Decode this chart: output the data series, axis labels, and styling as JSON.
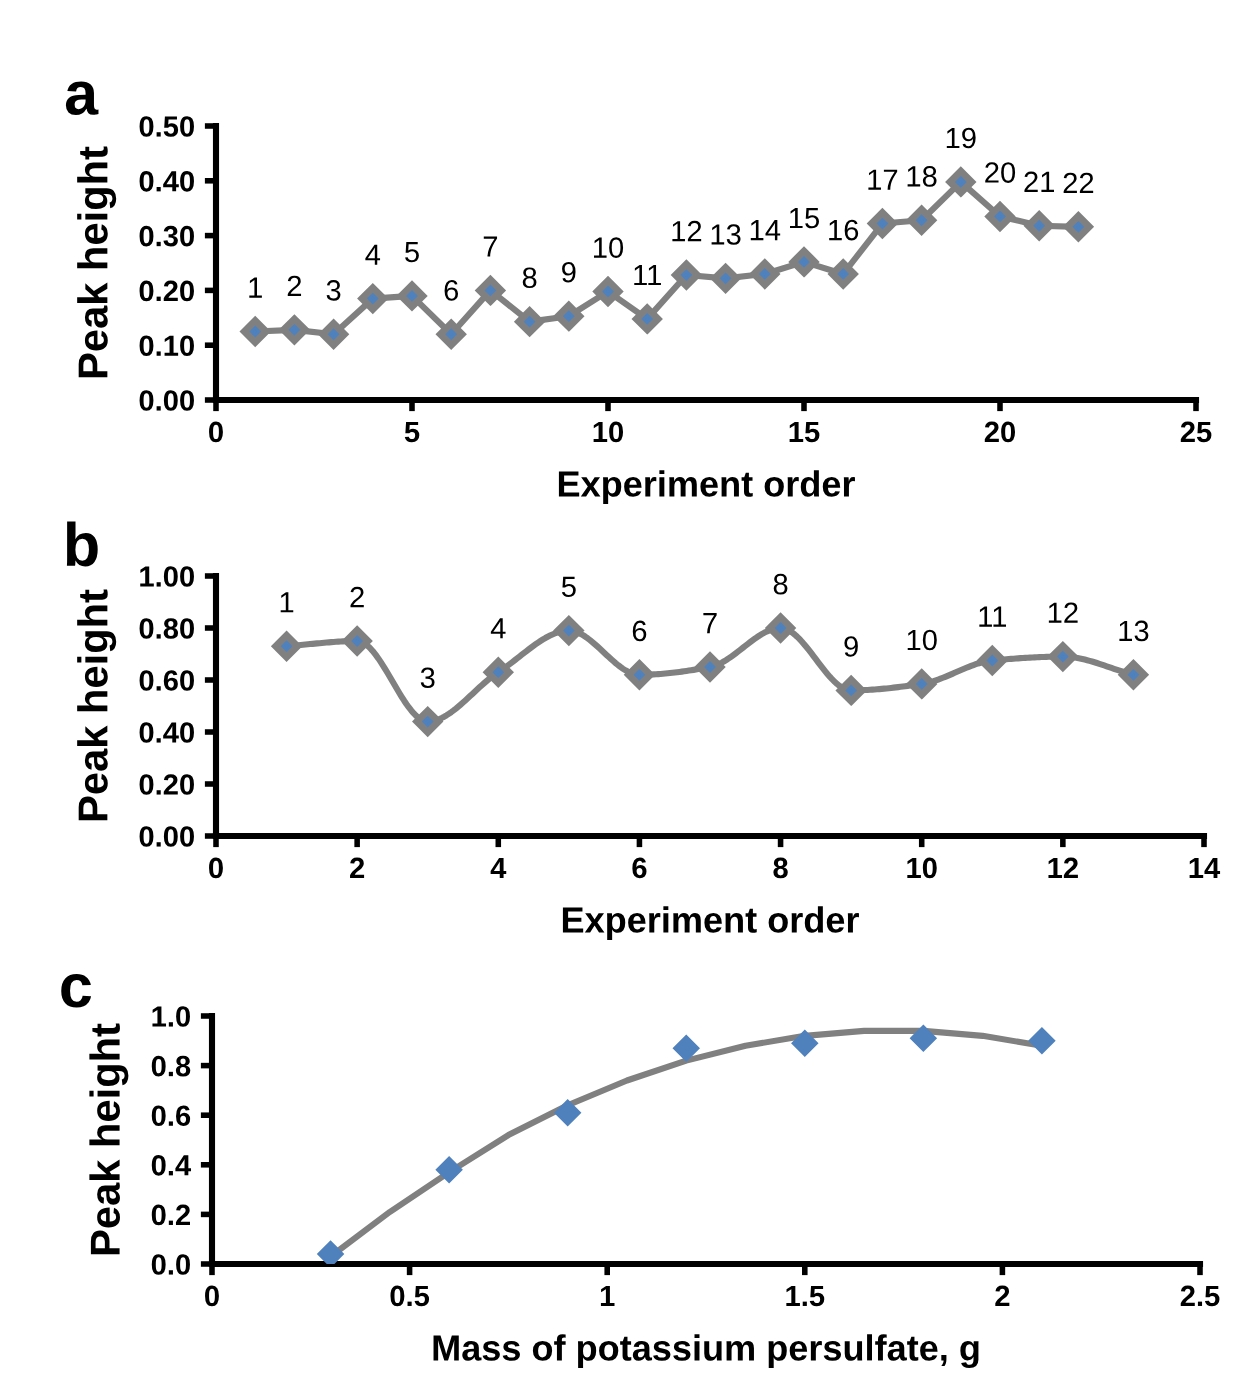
{
  "chart_data": [
    {
      "type": "line",
      "title": "a",
      "xlabel": "Experiment order",
      "ylabel": "Peak height",
      "marker": "diamond",
      "line_style": "solid",
      "grid": false,
      "legend": false,
      "x": [
        1,
        2,
        3,
        4,
        5,
        6,
        7,
        8,
        9,
        10,
        11,
        12,
        13,
        14,
        15,
        16,
        17,
        18,
        19,
        20,
        21,
        22
      ],
      "series": [
        {
          "color": "#808080",
          "values": [
            0.125,
            0.128,
            0.12,
            0.185,
            0.19,
            0.12,
            0.2,
            0.143,
            0.153,
            0.198,
            0.148,
            0.228,
            0.222,
            0.23,
            0.252,
            0.23,
            0.322,
            0.328,
            0.398,
            0.335,
            0.318,
            0.316
          ]
        }
      ],
      "annotations": [
        {
          "text": "1",
          "x": 1,
          "y": 0.125
        },
        {
          "text": "2",
          "x": 2,
          "y": 0.128
        },
        {
          "text": "3",
          "x": 3,
          "y": 0.12
        },
        {
          "text": "4",
          "x": 4,
          "y": 0.185
        },
        {
          "text": "5",
          "x": 5,
          "y": 0.19
        },
        {
          "text": "6",
          "x": 6,
          "y": 0.12
        },
        {
          "text": "7",
          "x": 7,
          "y": 0.2
        },
        {
          "text": "8",
          "x": 8,
          "y": 0.143
        },
        {
          "text": "9",
          "x": 9,
          "y": 0.153
        },
        {
          "text": "10",
          "x": 10,
          "y": 0.198
        },
        {
          "text": "11",
          "x": 11,
          "y": 0.148
        },
        {
          "text": "12",
          "x": 12,
          "y": 0.228
        },
        {
          "text": "13",
          "x": 13,
          "y": 0.222
        },
        {
          "text": "14",
          "x": 14,
          "y": 0.23
        },
        {
          "text": "15",
          "x": 15,
          "y": 0.252
        },
        {
          "text": "16",
          "x": 16,
          "y": 0.23
        },
        {
          "text": "17",
          "x": 17,
          "y": 0.322
        },
        {
          "text": "18",
          "x": 18,
          "y": 0.328
        },
        {
          "text": "19",
          "x": 19,
          "y": 0.398
        },
        {
          "text": "20",
          "x": 20,
          "y": 0.335
        },
        {
          "text": "21",
          "x": 21,
          "y": 0.318
        },
        {
          "text": "22",
          "x": 22,
          "y": 0.316
        }
      ],
      "xlim": [
        0,
        25
      ],
      "xticks": [
        0,
        5,
        10,
        15,
        20,
        25
      ],
      "ylim": [
        0,
        0.5
      ],
      "yticks": [
        {
          "value": 0,
          "label": "0.00"
        },
        {
          "value": 0.1,
          "label": "0.10"
        },
        {
          "value": 0.2,
          "label": "0.20"
        },
        {
          "value": 0.3,
          "label": "0.30"
        },
        {
          "value": 0.4,
          "label": "0.40"
        },
        {
          "value": 0.5,
          "label": "0.50"
        }
      ]
    },
    {
      "type": "line",
      "title": "b",
      "xlabel": "Experiment order",
      "ylabel": "Peak height",
      "marker": "diamond",
      "line_style": "solid",
      "grid": false,
      "legend": false,
      "x": [
        1,
        2,
        3,
        4,
        5,
        6,
        7,
        8,
        9,
        10,
        11,
        12,
        13
      ],
      "series": [
        {
          "color": "#808080",
          "values": [
            0.73,
            0.75,
            0.44,
            0.63,
            0.79,
            0.62,
            0.65,
            0.8,
            0.56,
            0.585,
            0.675,
            0.69,
            0.62
          ]
        }
      ],
      "annotations": [
        {
          "text": "1",
          "x": 1,
          "y": 0.73
        },
        {
          "text": "2",
          "x": 2,
          "y": 0.75
        },
        {
          "text": "3",
          "x": 3,
          "y": 0.44
        },
        {
          "text": "4",
          "x": 4,
          "y": 0.63
        },
        {
          "text": "5",
          "x": 5,
          "y": 0.79
        },
        {
          "text": "6",
          "x": 6,
          "y": 0.62
        },
        {
          "text": "7",
          "x": 7,
          "y": 0.65
        },
        {
          "text": "8",
          "x": 8,
          "y": 0.8
        },
        {
          "text": "9",
          "x": 9,
          "y": 0.56
        },
        {
          "text": "10",
          "x": 10,
          "y": 0.585
        },
        {
          "text": "11",
          "x": 11,
          "y": 0.675
        },
        {
          "text": "12",
          "x": 12,
          "y": 0.69
        },
        {
          "text": "13",
          "x": 13,
          "y": 0.62
        }
      ],
      "xlim": [
        0,
        14
      ],
      "xticks": [
        0,
        2,
        4,
        6,
        8,
        10,
        12,
        14
      ],
      "ylim": [
        0,
        1
      ],
      "yticks": [
        {
          "value": 0,
          "label": "0.00"
        },
        {
          "value": 0.2,
          "label": "0.20"
        },
        {
          "value": 0.4,
          "label": "0.40"
        },
        {
          "value": 0.6,
          "label": "0.60"
        },
        {
          "value": 0.8,
          "label": "0.80"
        },
        {
          "value": 1,
          "label": "1.00"
        }
      ]
    },
    {
      "type": "scatter",
      "title": "c",
      "xlabel": "Mass of potassium persulfate, g",
      "ylabel": "Peak height",
      "grid": false,
      "legend": false,
      "series": [
        {
          "type": "scatter",
          "marker": "diamond",
          "color": "#4f81bd",
          "x": [
            0.3,
            0.6,
            0.9,
            1.2,
            1.5,
            1.8,
            2.1
          ],
          "values": [
            0.04,
            0.38,
            0.61,
            0.87,
            0.89,
            0.91,
            0.9
          ]
        },
        {
          "type": "line",
          "marker": "none",
          "color": "#808080",
          "x": [
            0.3,
            0.45,
            0.6,
            0.75,
            0.9,
            1.05,
            1.2,
            1.35,
            1.5,
            1.65,
            1.8,
            1.95,
            2.1
          ],
          "values": [
            0.03,
            0.21,
            0.37,
            0.52,
            0.64,
            0.74,
            0.82,
            0.88,
            0.92,
            0.94,
            0.94,
            0.92,
            0.88
          ]
        }
      ],
      "xlim": [
        0,
        2.5
      ],
      "xticks": [
        0,
        0.5,
        1,
        1.5,
        2,
        2.5
      ],
      "ylim": [
        0,
        1
      ],
      "yticks": [
        {
          "value": 0,
          "label": "0.0"
        },
        {
          "value": 0.2,
          "label": "0.2"
        },
        {
          "value": 0.4,
          "label": "0.4"
        },
        {
          "value": 0.6,
          "label": "0.6"
        },
        {
          "value": 0.8,
          "label": "0.8"
        },
        {
          "value": 1,
          "label": "1.0"
        }
      ]
    }
  ]
}
